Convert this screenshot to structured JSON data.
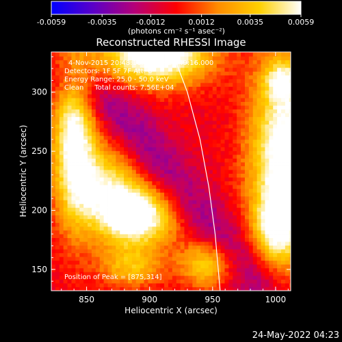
{
  "colorbar": {
    "ticks": [
      "-0.0059",
      "-0.0035",
      "-0.0012",
      "0.0012",
      "0.0035",
      "0.0059"
    ],
    "tick_values": [
      -0.0059,
      -0.0035,
      -0.0012,
      0.0012,
      0.0035,
      0.0059
    ],
    "unit_label": "(photons cm⁻² s⁻¹ asec⁻²)",
    "colormap": [
      "#0000ff",
      "#5a00c8",
      "#b40078",
      "#ff0000",
      "#ff8c00",
      "#ffd000",
      "#ffffff"
    ]
  },
  "footer": {
    "date": "24-May-2022 04:23"
  },
  "chart_data": {
    "type": "heatmap",
    "title": "Reconstructed RHESSI Image",
    "xlabel": "Heliocentric X (arcsec)",
    "ylabel": "Heliocentric Y (arcsec)",
    "xlim": [
      822,
      1012
    ],
    "ylim": [
      132,
      334
    ],
    "xticks": [
      850,
      900,
      950,
      1000
    ],
    "yticks": [
      150,
      200,
      250,
      300
    ],
    "annotations": [
      "4-Nov-2015 20:48:16.000 to 20:49:16.000",
      "Detectors: 1F 5F 7F Att: 0",
      "Energy Range: 25.0 - 50.0 keV",
      "Clean     Total counts: 7.56E+04"
    ],
    "peak_label": "Position of Peak = [875,314]",
    "peak": [
      875,
      314
    ],
    "limb_curve": [
      [
        918,
        334
      ],
      [
        930,
        300
      ],
      [
        940,
        260
      ],
      [
        947,
        220
      ],
      [
        952,
        180
      ],
      [
        956,
        132
      ]
    ],
    "sources": [
      {
        "x": 888,
        "y": 195,
        "sx": 22,
        "sy": 18,
        "amp": 1.0
      },
      {
        "x": 905,
        "y": 332,
        "sx": 30,
        "sy": 18,
        "amp": 1.0
      },
      {
        "x": 840,
        "y": 260,
        "sx": 12,
        "sy": 50,
        "amp": 0.85
      },
      {
        "x": 1008,
        "y": 245,
        "sx": 20,
        "sy": 55,
        "amp": 0.95
      },
      {
        "x": 1000,
        "y": 185,
        "sx": 12,
        "sy": 20,
        "amp": 0.55
      },
      {
        "x": 945,
        "y": 155,
        "sx": 15,
        "sy": 14,
        "amp": 0.55
      },
      {
        "x": 885,
        "y": 152,
        "sx": 18,
        "sy": 12,
        "amp": 0.45
      },
      {
        "x": 865,
        "y": 225,
        "sx": 18,
        "sy": 22,
        "amp": 0.55
      },
      {
        "x": 1005,
        "y": 310,
        "sx": 10,
        "sy": 12,
        "amp": 0.45
      }
    ],
    "negative_trough": [
      [
        840,
        310
      ],
      [
        875,
        285
      ],
      [
        900,
        250
      ],
      [
        930,
        210
      ],
      [
        960,
        175
      ],
      [
        985,
        140
      ]
    ]
  }
}
